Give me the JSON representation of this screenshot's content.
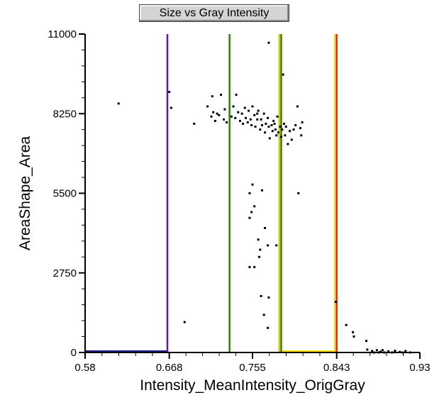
{
  "window": {
    "title": "Size vs Gray Intensity"
  },
  "chart_data": {
    "type": "scatter",
    "title": "Size vs Gray Intensity",
    "xlabel": "Intensity_MeanIntensity_OrigGray",
    "ylabel": "AreaShape_Area",
    "xlim": [
      0.58,
      0.93
    ],
    "ylim": [
      0,
      11000
    ],
    "x_ticks": [
      {
        "value": 0.58,
        "label": "0.58"
      },
      {
        "value": 0.668,
        "label": "0.668"
      },
      {
        "value": 0.755,
        "label": "0.755"
      },
      {
        "value": 0.843,
        "label": "0.843"
      },
      {
        "value": 0.93,
        "label": "0.93"
      }
    ],
    "y_ticks": [
      {
        "value": 0,
        "label": "0"
      },
      {
        "value": 2750,
        "label": "2750"
      },
      {
        "value": 5500,
        "label": "5500"
      },
      {
        "value": 8250,
        "label": "8250"
      },
      {
        "value": 11000,
        "label": "11000"
      }
    ],
    "grid": false,
    "threshold_lines": [
      {
        "x": 0.666,
        "color": "#5a1aa8"
      },
      {
        "x": 0.731,
        "color": "#2e7d1a"
      },
      {
        "x": 0.783,
        "color": "#cccc00"
      },
      {
        "x": 0.785,
        "color": "#2e7d1a"
      },
      {
        "x": 0.841,
        "color": "#ffe000"
      },
      {
        "x": 0.843,
        "color": "#e02020"
      }
    ],
    "threshold_ranges": [
      {
        "x0": 0.58,
        "x1": 0.666,
        "color": "#1c1c8c"
      },
      {
        "x0": 0.785,
        "x1": 0.841,
        "color": "#ffe000"
      }
    ],
    "points": [
      [
        0.615,
        8600
      ],
      [
        0.668,
        9000
      ],
      [
        0.67,
        8450
      ],
      [
        0.684,
        1050
      ],
      [
        0.694,
        7900
      ],
      [
        0.708,
        8500
      ],
      [
        0.713,
        8850
      ],
      [
        0.714,
        8300
      ],
      [
        0.712,
        8150
      ],
      [
        0.716,
        8000
      ],
      [
        0.718,
        8250
      ],
      [
        0.72,
        8200
      ],
      [
        0.722,
        8900
      ],
      [
        0.725,
        8050
      ],
      [
        0.726,
        8400
      ],
      [
        0.728,
        7950
      ],
      [
        0.733,
        8150
      ],
      [
        0.735,
        8500
      ],
      [
        0.737,
        8100
      ],
      [
        0.738,
        8900
      ],
      [
        0.74,
        8300
      ],
      [
        0.742,
        8000
      ],
      [
        0.744,
        8250
      ],
      [
        0.745,
        7900
      ],
      [
        0.747,
        8450
      ],
      [
        0.748,
        8100
      ],
      [
        0.75,
        7950
      ],
      [
        0.751,
        8350
      ],
      [
        0.753,
        8050
      ],
      [
        0.754,
        7850
      ],
      [
        0.755,
        8500
      ],
      [
        0.757,
        8200
      ],
      [
        0.758,
        7800
      ],
      [
        0.76,
        8050
      ],
      [
        0.761,
        8350
      ],
      [
        0.763,
        7700
      ],
      [
        0.764,
        8050
      ],
      [
        0.765,
        7850
      ],
      [
        0.767,
        8250
      ],
      [
        0.768,
        7600
      ],
      [
        0.769,
        7900
      ],
      [
        0.771,
        8100
      ],
      [
        0.772,
        7800
      ],
      [
        0.773,
        7400
      ],
      [
        0.775,
        7850
      ],
      [
        0.776,
        7650
      ],
      [
        0.778,
        7900
      ],
      [
        0.779,
        7700
      ],
      [
        0.78,
        7500
      ],
      [
        0.781,
        8150
      ],
      [
        0.782,
        7600
      ],
      [
        0.784,
        7800
      ],
      [
        0.785,
        7450
      ],
      [
        0.786,
        7700
      ],
      [
        0.788,
        7900
      ],
      [
        0.789,
        7500
      ],
      [
        0.79,
        7800
      ],
      [
        0.792,
        7200
      ],
      [
        0.794,
        7650
      ],
      [
        0.796,
        7350
      ],
      [
        0.798,
        7700
      ],
      [
        0.8,
        7850
      ],
      [
        0.802,
        8500
      ],
      [
        0.805,
        7750
      ],
      [
        0.806,
        7500
      ],
      [
        0.807,
        7950
      ],
      [
        0.772,
        10700
      ],
      [
        0.787,
        9600
      ],
      [
        0.76,
        8250
      ],
      [
        0.777,
        8000
      ],
      [
        0.755,
        5800
      ],
      [
        0.752,
        5500
      ],
      [
        0.765,
        5600
      ],
      [
        0.757,
        5050
      ],
      [
        0.754,
        4850
      ],
      [
        0.752,
        4650
      ],
      [
        0.768,
        4300
      ],
      [
        0.761,
        3900
      ],
      [
        0.763,
        3550
      ],
      [
        0.771,
        3700
      ],
      [
        0.78,
        3700
      ],
      [
        0.762,
        3300
      ],
      [
        0.757,
        2950
      ],
      [
        0.752,
        2950
      ],
      [
        0.803,
        5500
      ],
      [
        0.764,
        1950
      ],
      [
        0.772,
        1900
      ],
      [
        0.767,
        1300
      ],
      [
        0.771,
        850
      ],
      [
        0.842,
        1750
      ],
      [
        0.853,
        950
      ],
      [
        0.86,
        700
      ],
      [
        0.861,
        550
      ],
      [
        0.874,
        400
      ],
      [
        0.875,
        100
      ],
      [
        0.88,
        50
      ],
      [
        0.882,
        0
      ],
      [
        0.885,
        80
      ],
      [
        0.887,
        0
      ],
      [
        0.889,
        30
      ],
      [
        0.891,
        80
      ],
      [
        0.893,
        0
      ],
      [
        0.897,
        40
      ],
      [
        0.901,
        0
      ],
      [
        0.904,
        60
      ],
      [
        0.909,
        20
      ],
      [
        0.912,
        0
      ],
      [
        0.915,
        50
      ],
      [
        0.92,
        0
      ]
    ]
  }
}
